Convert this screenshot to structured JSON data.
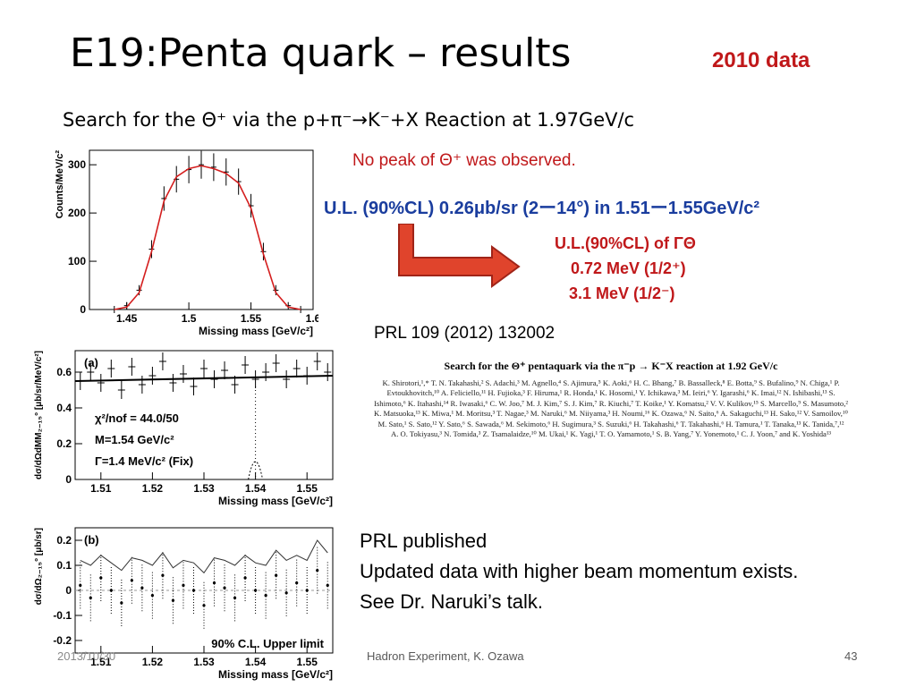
{
  "slide": {
    "title": "E19:Penta quark – results",
    "badge": "2010 data",
    "subtitle": "Search for the Θ⁺ via the p+π⁻→K⁻+X  Reaction at 1.97GeV/c",
    "no_peak": "No peak of Θ⁺ was observed.",
    "upper_limit_line": "U.L. (90%CL)  0.26μb/sr (2ー14°) in 1.51ー1.55GeV/c²",
    "width_limit": {
      "header": "U.L.(90%CL)  of ΓΘ",
      "line1": "0.72 MeV   (1/2⁺)",
      "line2": "3.1 MeV     (1/2⁻)"
    },
    "reference": "PRL 109 (2012) 132002",
    "notes": [
      "PRL published",
      "Updated data with higher beam momentum exists.",
      "See Dr. Naruki’s talk."
    ],
    "footer": {
      "date": "2013/10/30",
      "center": "Hadron Experiment, K. Ozawa",
      "page": "43"
    },
    "colors": {
      "red": "#c0181a",
      "blue": "#1a3d9e",
      "arrow": "#e0442c"
    }
  },
  "abstract": {
    "title": "Search for the Θ⁺ pentaquark via the π⁻p → K⁻X reaction at 1.92 GeV/c",
    "authors": "K. Shirotori,¹,* T. N. Takahashi,² S. Adachi,³ M. Agnello,⁴ S. Ajimura,⁵ K. Aoki,⁶ H. C. Bhang,⁷ B. Bassalleck,⁸ E. Botta,⁹ S. Bufalino,⁹ N. Chiga,¹ P. Evtoukhovitch,¹⁰ A. Feliciello,¹¹ H. Fujioka,³ F. Hiruma,¹ R. Honda,¹ K. Hosomi,¹ Y. Ichikawa,³ M. Ieiri,⁶ Y. Igarashi,⁶ K. Imai,¹² N. Ishibashi,¹³ S. Ishimoto,⁶ K. Itahashi,¹⁴ R. Iwasaki,⁶ C. W. Joo,⁷ M. J. Kim,⁷ S. J. Kim,⁷ R. Kiuchi,⁷ T. Koike,¹ Y. Komatsu,² V. V. Kulikov,¹⁵ S. Marcello,⁹ S. Masumoto,² K. Matsuoka,¹³ K. Miwa,¹ M. Moritsu,³ T. Nagae,³ M. Naruki,⁶ M. Niiyama,³ H. Noumi,¹⁶ K. Ozawa,⁶ N. Saito,⁶ A. Sakaguchi,¹³ H. Sako,¹² V. Samoilov,¹⁰ M. Sato,¹ S. Sato,¹² Y. Sato,⁶ S. Sawada,⁶ M. Sekimoto,⁶ H. Sugimura,³ S. Suzuki,⁶ H. Takahashi,⁶ T. Takahashi,⁶ H. Tamura,¹ T. Tanaka,¹³ K. Tanida,⁷,¹² A. O. Tokiyasu,³ N. Tomida,³ Z. Tsamalaidze,¹⁰ M. Ukai,¹ K. Yagi,¹ T. O. Yamamoto,¹ S. B. Yang,⁷ Y. Yonemoto,¹ C. J. Yoon,⁷ and K. Yoshida¹³"
  },
  "chart_data": [
    {
      "type": "histogram",
      "xlabel": "Missing mass [GeV/c²]",
      "ylabel": "Counts/MeV/c²",
      "xlim": [
        1.42,
        1.6
      ],
      "ylim": [
        0,
        330
      ],
      "xticks": [
        "1.45",
        "1.5",
        "1.55",
        "1.6"
      ],
      "yticks": [
        "0",
        "100",
        "200",
        "300"
      ],
      "series": [
        {
          "style": "data points",
          "x": [
            1.44,
            1.45,
            1.46,
            1.47,
            1.48,
            1.49,
            1.5,
            1.51,
            1.52,
            1.53,
            1.54,
            1.55,
            1.56,
            1.57,
            1.58,
            1.59
          ],
          "values": [
            0,
            8,
            40,
            125,
            230,
            270,
            290,
            300,
            295,
            285,
            265,
            215,
            120,
            40,
            8,
            0
          ]
        },
        {
          "style": "red fit line",
          "x": [
            1.44,
            1.45,
            1.46,
            1.47,
            1.48,
            1.49,
            1.5,
            1.51,
            1.52,
            1.53,
            1.54,
            1.55,
            1.56,
            1.57,
            1.58,
            1.59
          ],
          "values": [
            0,
            5,
            35,
            120,
            225,
            275,
            292,
            298,
            292,
            282,
            262,
            210,
            115,
            35,
            5,
            0
          ]
        }
      ]
    },
    {
      "type": "scatter",
      "panel": "(a)",
      "xlabel": "Missing mass [GeV/c²]",
      "ylabel": "dσ/dΩdMM₂₋₁₅° [μb/sr/MeV/c²]",
      "xlim": [
        1.505,
        1.555
      ],
      "ylim": [
        0,
        0.72
      ],
      "xticks": [
        "1.51",
        "1.52",
        "1.53",
        "1.54",
        "1.55"
      ],
      "yticks": [
        "0",
        "0.2",
        "0.4",
        "0.6"
      ],
      "annotations": [
        "χ²/nof = 44.0/50",
        "M=1.54 GeV/c²",
        "Γ=1.4 MeV/c² (Fix)"
      ],
      "x": [
        1.506,
        1.508,
        1.51,
        1.512,
        1.514,
        1.516,
        1.518,
        1.52,
        1.522,
        1.524,
        1.526,
        1.528,
        1.53,
        1.532,
        1.534,
        1.536,
        1.538,
        1.54,
        1.542,
        1.544,
        1.546,
        1.548,
        1.55,
        1.552,
        1.554
      ],
      "values": [
        0.55,
        0.6,
        0.54,
        0.62,
        0.5,
        0.63,
        0.53,
        0.58,
        0.66,
        0.54,
        0.59,
        0.52,
        0.62,
        0.56,
        0.61,
        0.53,
        0.64,
        0.56,
        0.6,
        0.65,
        0.56,
        0.62,
        0.58,
        0.66,
        0.6
      ],
      "fit": [
        0.55,
        0.58
      ]
    },
    {
      "type": "scatter",
      "panel": "(b)",
      "xlabel": "Missing mass [GeV/c²]",
      "ylabel": "dσ/dΩ₂₋₁₅° [μb/sr]",
      "xlim": [
        1.505,
        1.555
      ],
      "ylim": [
        -0.25,
        0.25
      ],
      "xticks": [
        "1.51",
        "1.52",
        "1.53",
        "1.54",
        "1.55"
      ],
      "yticks": [
        "-0.2",
        "-0.1",
        "0",
        "0.1",
        "0.2"
      ],
      "annotations": [
        "90% C.L. Upper limit"
      ],
      "x": [
        1.506,
        1.508,
        1.51,
        1.512,
        1.514,
        1.516,
        1.518,
        1.52,
        1.522,
        1.524,
        1.526,
        1.528,
        1.53,
        1.532,
        1.534,
        1.536,
        1.538,
        1.54,
        1.542,
        1.544,
        1.546,
        1.548,
        1.55,
        1.552,
        1.554
      ],
      "values": [
        0.02,
        -0.03,
        0.05,
        0.0,
        -0.05,
        0.04,
        0.01,
        -0.02,
        0.06,
        -0.04,
        0.02,
        0.0,
        -0.06,
        0.03,
        0.01,
        -0.03,
        0.05,
        0.0,
        -0.02,
        0.06,
        -0.01,
        0.03,
        0.0,
        0.08,
        0.02
      ],
      "upper_limit": [
        0.12,
        0.1,
        0.14,
        0.11,
        0.08,
        0.13,
        0.12,
        0.1,
        0.15,
        0.09,
        0.12,
        0.11,
        0.07,
        0.13,
        0.12,
        0.1,
        0.14,
        0.11,
        0.1,
        0.16,
        0.12,
        0.14,
        0.12,
        0.2,
        0.15
      ]
    }
  ]
}
